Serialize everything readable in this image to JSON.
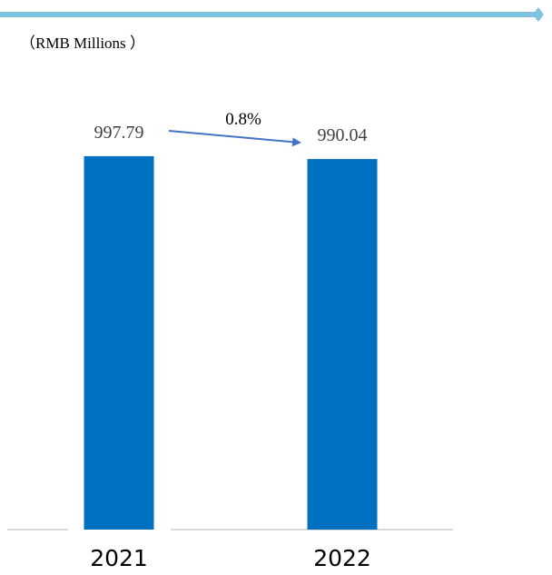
{
  "header": {
    "accent_color": "#7DC3DE"
  },
  "chart_data": {
    "type": "bar",
    "title": "",
    "unit_label": "（RMB Millions ）",
    "categories": [
      "2021",
      "2022"
    ],
    "values": [
      997.79,
      990.04
    ],
    "value_labels": [
      "997.79",
      "990.04"
    ],
    "change_annotation": "0.8%",
    "xlabel": "",
    "ylabel": "",
    "ylim": [
      0,
      1000
    ],
    "grid": false,
    "legend": "none",
    "bar_color": "#0070C0",
    "arrow_color": "#4472C4",
    "baseline_color": "#D9D9D9"
  }
}
